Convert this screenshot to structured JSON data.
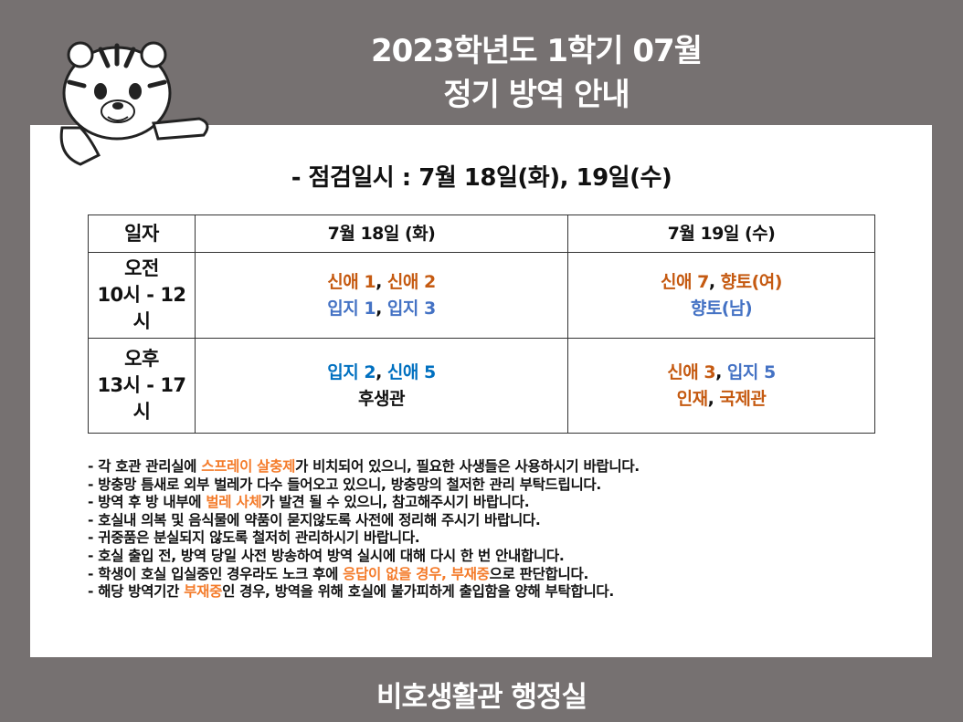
{
  "header": {
    "title_line1": "2023학년도 1학기 07월",
    "title_line2": "정기 방역 안내"
  },
  "mascot": "tiger-mascot",
  "subtitle": "- 점검일시 :  7월 18일(화), 19일(수)",
  "colors": {
    "background": "#767171",
    "orange": "#c55a11",
    "blue": "#4472c4",
    "blue2": "#0070c0",
    "highlight": "#f47b2a"
  },
  "table": {
    "headers": [
      "일자",
      "7월 18일 (화)",
      "7월 19일 (수)"
    ],
    "rows": [
      {
        "period": "오전",
        "time": "10시 - 12시",
        "day1": {
          "line1": [
            {
              "text": "신애 1",
              "color": "orange"
            },
            {
              "text": ", ",
              "color": "black"
            },
            {
              "text": "신애 2",
              "color": "orange"
            }
          ],
          "line2": [
            {
              "text": "입지 1",
              "color": "blue"
            },
            {
              "text": ", ",
              "color": "black"
            },
            {
              "text": "입지 3",
              "color": "blue"
            }
          ]
        },
        "day2": {
          "line1": [
            {
              "text": "신애 7",
              "color": "orange"
            },
            {
              "text": ", ",
              "color": "black"
            },
            {
              "text": "향토(여)",
              "color": "orange"
            }
          ],
          "line2": [
            {
              "text": "향토(남)",
              "color": "blue"
            }
          ]
        }
      },
      {
        "period": "오후",
        "time": "13시 - 17시",
        "day1": {
          "line1": [
            {
              "text": "입지 2",
              "color": "blue2"
            },
            {
              "text": ", ",
              "color": "black"
            },
            {
              "text": "신애 5",
              "color": "blue2"
            }
          ],
          "line2": [
            {
              "text": "후생관",
              "color": "black"
            }
          ]
        },
        "day2": {
          "line1": [
            {
              "text": "신애 3",
              "color": "orange"
            },
            {
              "text": ", ",
              "color": "black"
            },
            {
              "text": "입지 5",
              "color": "blue"
            }
          ],
          "line2": [
            {
              "text": "인재",
              "color": "orange"
            },
            {
              "text": ", ",
              "color": "black"
            },
            {
              "text": "국제관",
              "color": "orange"
            }
          ]
        }
      }
    ]
  },
  "notes": [
    [
      {
        "t": "- 각 호관 관리실에 "
      },
      {
        "t": "스프레이 살충제",
        "hl": true
      },
      {
        "t": "가 비치되어 있으니, 필요한 사생들은 사용하시기 바랍니다."
      }
    ],
    [
      {
        "t": "- 방충망 틈새로 외부 벌레가 다수 들어오고 있으니, 방충망의 철저한 관리 부탁드립니다."
      }
    ],
    [
      {
        "t": "- 방역 후 방 내부에 "
      },
      {
        "t": "벌레 사체",
        "hl": true
      },
      {
        "t": "가 발견 될 수 있으니, 참고해주시기 바랍니다."
      }
    ],
    [
      {
        "t": "- 호실내 의복 및 음식물에 약품이 묻지않도록 사전에 정리해 주시기 바랍니다."
      }
    ],
    [
      {
        "t": "- 귀중품은 분실되지 않도록 철저히 관리하시기 바랍니다."
      }
    ],
    [
      {
        "t": "- 호실 출입 전, 방역 당일 사전 방송하여 방역 실시에 대해 다시 한 번 안내합니다."
      }
    ],
    [
      {
        "t": "- 학생이 호실 입실중인 경우라도 노크 후에 "
      },
      {
        "t": "응답이 없을 경우, 부재중",
        "hl": true
      },
      {
        "t": "으로 판단합니다."
      }
    ],
    [
      {
        "t": "- 해당 방역기간 "
      },
      {
        "t": "부재중",
        "hl": true
      },
      {
        "t": "인 경우, 방역을 위해 호실에 불가피하게 출입함을 양해 부탁합니다."
      }
    ]
  ],
  "footer": "비호생활관 행정실"
}
